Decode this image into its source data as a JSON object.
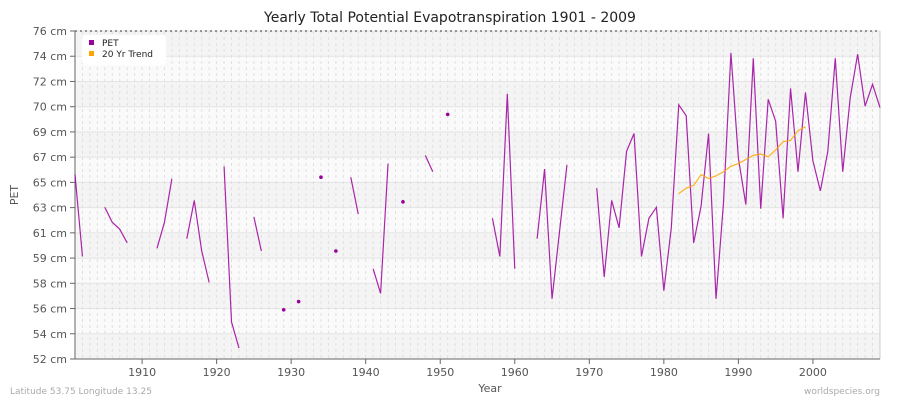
{
  "chart_data": {
    "type": "line",
    "title": "Yearly Total Potential Evapotranspiration 1901 - 2009",
    "xlabel": "Year",
    "ylabel": "PET",
    "xlim": [
      1901,
      2009
    ],
    "ylim": [
      52,
      76
    ],
    "y_tick_labels": [
      "76 cm",
      "74 cm",
      "72 cm",
      "70 cm",
      "69 cm",
      "67 cm",
      "65 cm",
      "63 cm",
      "61 cm",
      "59 cm",
      "58 cm",
      "56 cm",
      "54 cm",
      "52 cm"
    ],
    "x_ticks": [
      1910,
      1920,
      1930,
      1940,
      1950,
      1960,
      1970,
      1980,
      1990,
      2000
    ],
    "grid": true,
    "legend_position": "top-left",
    "series": [
      {
        "name": "PET",
        "color": "#9b009b",
        "x": [
          1901,
          1902,
          1903,
          1904,
          1905,
          1906,
          1907,
          1908,
          1909,
          1910,
          1911,
          1912,
          1913,
          1914,
          1915,
          1916,
          1917,
          1918,
          1919,
          1920,
          1921,
          1922,
          1923,
          1924,
          1925,
          1926,
          1927,
          1928,
          1929,
          1930,
          1931,
          1932,
          1933,
          1934,
          1935,
          1936,
          1937,
          1938,
          1939,
          1940,
          1941,
          1942,
          1943,
          1944,
          1945,
          1946,
          1947,
          1948,
          1949,
          1950,
          1951,
          1952,
          1953,
          1954,
          1955,
          1956,
          1957,
          1958,
          1959,
          1960,
          1961,
          1962,
          1963,
          1964,
          1965,
          1966,
          1967,
          1968,
          1969,
          1970,
          1971,
          1972,
          1973,
          1974,
          1975,
          1976,
          1977,
          1978,
          1979,
          1980,
          1981,
          1982,
          1983,
          1984,
          1985,
          1986,
          1987,
          1988,
          1989,
          1990,
          1991,
          1992,
          1993,
          1994,
          1995,
          1996,
          1997,
          1998,
          1999,
          2000,
          2001,
          2002,
          2003,
          2004,
          2005,
          2006,
          2007,
          2008,
          2009
        ],
        "y": [
          65.5,
          59.5,
          null,
          null,
          63.1,
          62.0,
          61.5,
          60.5,
          null,
          null,
          null,
          60.1,
          62.0,
          65.2,
          null,
          60.8,
          63.6,
          59.9,
          57.6,
          null,
          66.1,
          54.7,
          52.8,
          null,
          62.4,
          59.9,
          null,
          null,
          55.6,
          null,
          56.2,
          null,
          null,
          65.3,
          null,
          59.9,
          null,
          65.3,
          62.6,
          null,
          58.6,
          56.8,
          66.3,
          null,
          63.5,
          null,
          null,
          66.9,
          65.7,
          null,
          69.9,
          null,
          null,
          null,
          null,
          null,
          62.3,
          59.5,
          71.4,
          58.6,
          null,
          null,
          60.8,
          65.9,
          56.4,
          61.3,
          66.2,
          null,
          null,
          null,
          64.5,
          58.0,
          63.6,
          61.6,
          67.2,
          68.5,
          59.5,
          62.3,
          63.1,
          57.0,
          61.6,
          70.6,
          69.8,
          60.5,
          63.2,
          68.5,
          56.4,
          63.4,
          74.4,
          66.7,
          63.3,
          74.0,
          63.0,
          71.0,
          69.4,
          62.3,
          71.8,
          65.7,
          71.5,
          66.5,
          64.3,
          67.2,
          74.0,
          65.7,
          71.1,
          74.3,
          70.5,
          72.1,
          70.4
        ]
      },
      {
        "name": "20 Yr Trend",
        "color": "#ffa500",
        "x": [
          1982,
          1983,
          1984,
          1985,
          1986,
          1987,
          1988,
          1989,
          1990,
          1991,
          1992,
          1993,
          1994,
          1995,
          1996,
          1997,
          1998,
          1999
        ],
        "y": [
          64.1,
          64.5,
          64.7,
          65.5,
          65.2,
          65.4,
          65.7,
          66.1,
          66.3,
          66.6,
          66.9,
          67.0,
          66.8,
          67.3,
          67.9,
          68.0,
          68.7,
          69.0
        ]
      }
    ]
  },
  "footer": {
    "location": "Latitude 53.75 Longitude 13.25",
    "source": "worldspecies.org"
  }
}
